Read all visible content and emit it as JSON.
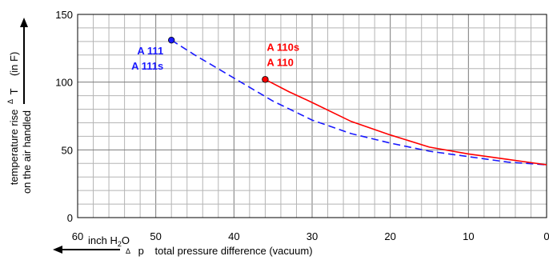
{
  "chart_data": {
    "type": "line",
    "x_reversed": true,
    "xlim": [
      0,
      60
    ],
    "ylim": [
      0,
      150
    ],
    "x_ticks": [
      60,
      50,
      40,
      30,
      20,
      10,
      0
    ],
    "y_ticks": [
      0,
      50,
      100,
      150
    ],
    "grid": true,
    "ylabel_line1": "temperature rise",
    "ylabel_delta": "Δ",
    "ylabel_var": "T",
    "ylabel_unit": "(in F)",
    "ylabel_line2": "on the air handled",
    "xlabel_unit_main": "inch H",
    "xlabel_unit_sub": "2",
    "xlabel_unit_end": "O",
    "xlabel_delta": "Δ",
    "xlabel_var": "p",
    "xlabel_text": "total pressure difference (vacuum)",
    "series": [
      {
        "label_lines": [
          "A 111",
          "A 111s"
        ],
        "color": "#1a1aff",
        "dash": true,
        "points": [
          [
            48,
            131
          ],
          [
            45,
            120
          ],
          [
            40,
            103
          ],
          [
            35,
            86
          ],
          [
            30,
            72
          ],
          [
            25,
            62
          ],
          [
            20,
            55
          ],
          [
            15,
            49
          ],
          [
            10,
            45
          ],
          [
            5,
            41
          ],
          [
            0,
            39
          ]
        ]
      },
      {
        "label_lines": [
          "A 110s",
          "A 110"
        ],
        "color": "#ff0000",
        "dash": false,
        "points": [
          [
            36,
            102
          ],
          [
            33,
            93
          ],
          [
            30,
            85
          ],
          [
            25,
            71
          ],
          [
            20,
            61
          ],
          [
            15,
            52
          ],
          [
            10,
            47
          ],
          [
            5,
            43
          ],
          [
            0,
            39
          ]
        ]
      }
    ]
  }
}
